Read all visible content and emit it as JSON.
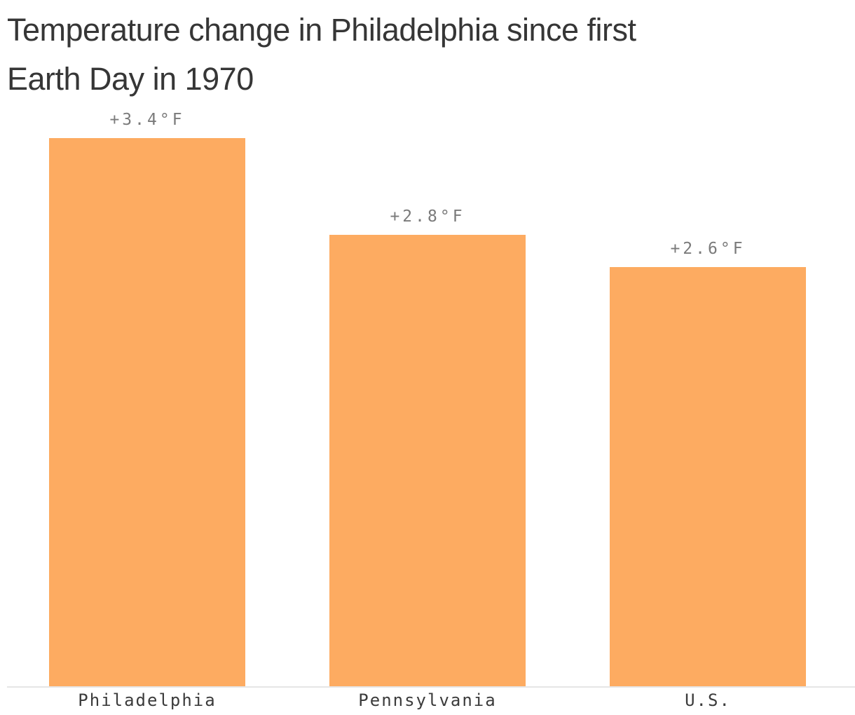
{
  "title": {
    "line1": "Temperature change in Philadelphia since first",
    "line2": "Earth Day in 1970"
  },
  "chart_data": {
    "type": "bar",
    "title": "Temperature change in Philadelphia since first Earth Day in 1970",
    "categories": [
      "Philadelphia",
      "Pennsylvania",
      "U.S."
    ],
    "values": [
      3.4,
      2.8,
      2.6
    ],
    "value_labels": [
      "+3.4°F",
      "+2.8°F",
      "+2.6°F"
    ],
    "unit": "°F",
    "xlabel": "",
    "ylabel": "",
    "ylim": [
      0,
      3.4
    ],
    "grid": false,
    "legend": false,
    "colors": {
      "bar": "#fdab61",
      "value_label": "#7a7a7a",
      "category_label": "#3b3b3b",
      "axis_line": "#e6e6e6",
      "title": "#363636",
      "background": "#ffffff"
    }
  }
}
